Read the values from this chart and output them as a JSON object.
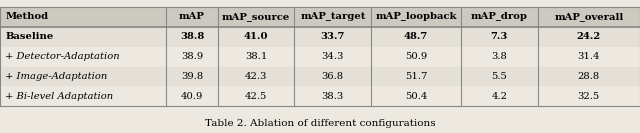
{
  "columns": [
    "Method",
    "mAP",
    "mAP_source",
    "mAP_target",
    "mAP_loopback",
    "mAP_drop",
    "mAP_overall"
  ],
  "rows": [
    [
      "Baseline",
      "38.8",
      "41.0",
      "33.7",
      "48.7",
      "7.3",
      "24.2"
    ],
    [
      "+ Detector-Adaptation",
      "38.9",
      "38.1",
      "34.3",
      "50.9",
      "3.8",
      "31.4"
    ],
    [
      "+ Image-Adaptation",
      "39.8",
      "42.3",
      "36.8",
      "51.7",
      "5.5",
      "28.8"
    ],
    [
      "+ Bi-level Adaptation",
      "40.9",
      "42.5",
      "38.3",
      "50.4",
      "4.2",
      "32.5"
    ]
  ],
  "italic_rows": [
    1,
    2,
    3
  ],
  "bold_rows": [
    0
  ],
  "caption": "Table 2. Ablation of different configurations",
  "bg_color": "#ede9e0",
  "header_bg": "#ccc9c0",
  "row_bg_alt": "#e4e0d8",
  "line_color": "#888880",
  "figsize": [
    6.4,
    1.33
  ],
  "dpi": 100
}
